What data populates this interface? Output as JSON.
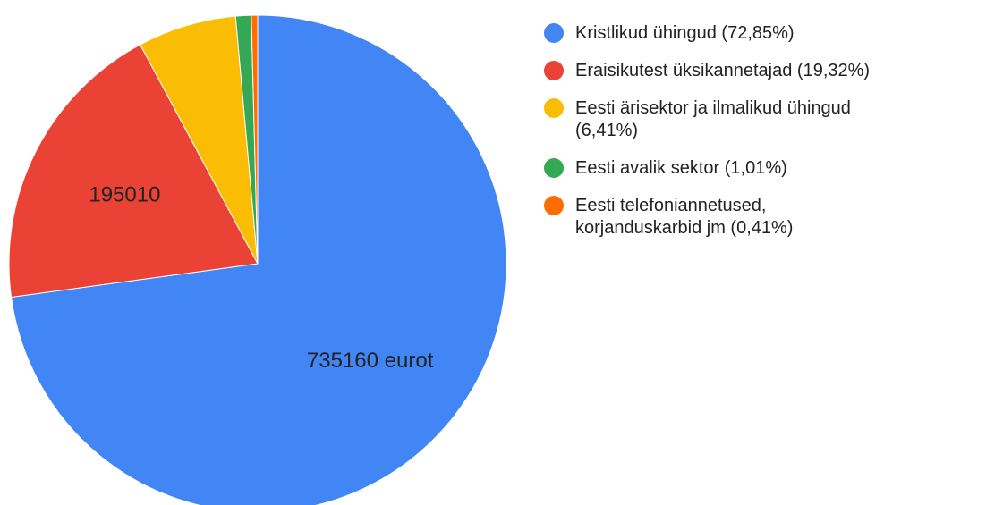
{
  "chart_data": {
    "type": "pie",
    "categories": [
      "Kristlikud ühingud (72,85%)",
      "Eraisikutest üksikannetajad (19,32%)",
      "Eesti ärisektor ja ilmalikud ühingud\n(6,41%)",
      "Eesti avalik sektor (1,01%)",
      "Eesti telefoniannetused,\nkorjanduskarbid jm (0,41%)"
    ],
    "values": [
      735160,
      195010,
      64686,
      10192,
      4137
    ],
    "value_labels": [
      "735160 eurot",
      "195010",
      null,
      null,
      null
    ],
    "colors": [
      "#4285f4",
      "#ea4335",
      "#fbbc04",
      "#34a853",
      "#ff6d01"
    ],
    "legend": "right"
  }
}
